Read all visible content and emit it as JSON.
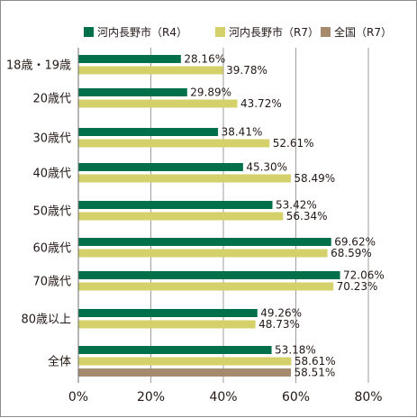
{
  "colors": {
    "r4": "#00704a",
    "r7": "#d4d16a",
    "national": "#a68a6d",
    "grid": "#9e9e9e",
    "axis": "#6e6e6e"
  },
  "chart_data": {
    "type": "bar",
    "orientation": "horizontal",
    "unit": "%",
    "xlim": [
      0,
      80
    ],
    "xticks": [
      "0%",
      "20%",
      "40%",
      "60%",
      "80%"
    ],
    "grid": true,
    "legend_position": "top",
    "categories": [
      "18歳・19歳",
      "20歳代",
      "30歳代",
      "40歳代",
      "50歳代",
      "60歳代",
      "70歳代",
      "80歳以上",
      "全体"
    ],
    "series": [
      {
        "name": "河内長野市（R4）",
        "color_key": "r4",
        "values": [
          28.16,
          29.89,
          38.41,
          45.3,
          53.42,
          69.62,
          72.06,
          49.26,
          53.18
        ],
        "labels": [
          "28.16%",
          "29.89%",
          "38.41%",
          "45.30%",
          "53.42%",
          "69.62%",
          "72.06%",
          "49.26%",
          "53.18%"
        ]
      },
      {
        "name": "河内長野市（R7）",
        "color_key": "r7",
        "values": [
          39.78,
          43.72,
          52.61,
          58.49,
          56.34,
          68.59,
          70.23,
          48.73,
          58.61
        ],
        "labels": [
          "39.78%",
          "43.72%",
          "52.61%",
          "58.49%",
          "56.34%",
          "68.59%",
          "70.23%",
          "48.73%",
          "58.61%"
        ]
      },
      {
        "name": "全国（R7）",
        "color_key": "national",
        "values": [
          null,
          null,
          null,
          null,
          null,
          null,
          null,
          null,
          58.51
        ],
        "labels": [
          null,
          null,
          null,
          null,
          null,
          null,
          null,
          null,
          "58.51%"
        ]
      }
    ]
  }
}
